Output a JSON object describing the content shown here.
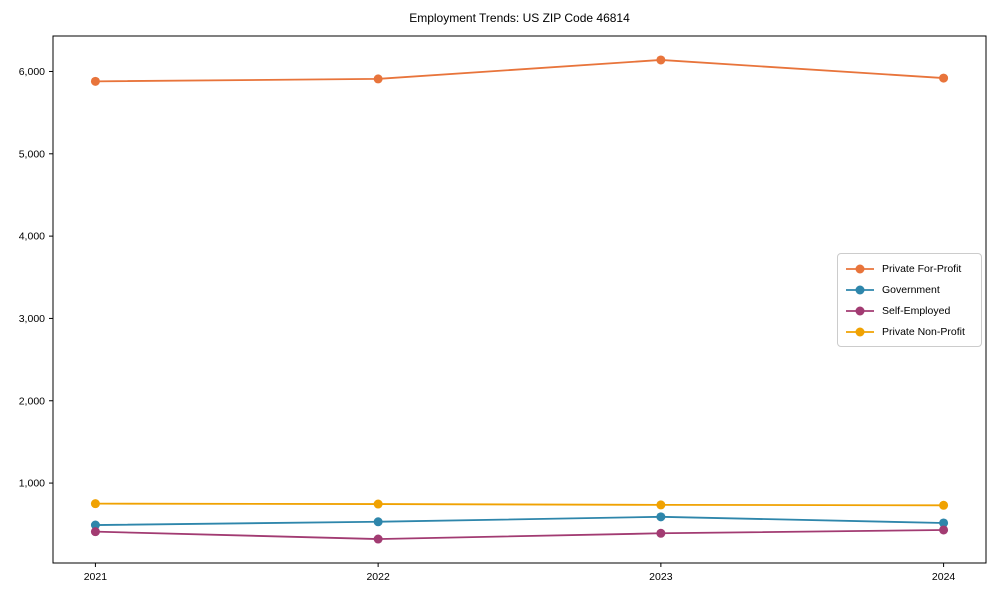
{
  "chart_data": {
    "type": "line",
    "title": "Employment Trends: US ZIP Code 46814",
    "x": [
      2021,
      2022,
      2023,
      2024
    ],
    "x_tick_labels": [
      "2021",
      "2022",
      "2023",
      "2024"
    ],
    "y_ticks": [
      1000,
      2000,
      3000,
      4000,
      5000,
      6000
    ],
    "xlim": [
      2020.85,
      2024.15
    ],
    "ylim": [
      29,
      6431
    ],
    "xlabel": "",
    "ylabel": "",
    "grid": false,
    "marker": "circle",
    "legend_position": "center-right",
    "axis_color": "#000000",
    "background_color": "#ffffff",
    "series": [
      {
        "name": "Private For-Profit",
        "color": "#E8743B",
        "values": [
          5880,
          5910,
          6140,
          5920
        ]
      },
      {
        "name": "Government",
        "color": "#2E86AB",
        "values": [
          490,
          530,
          590,
          515
        ]
      },
      {
        "name": "Self-Employed",
        "color": "#A23B72",
        "values": [
          410,
          320,
          390,
          430
        ]
      },
      {
        "name": "Private Non-Profit",
        "color": "#F0A202",
        "values": [
          750,
          745,
          735,
          730
        ]
      }
    ]
  }
}
